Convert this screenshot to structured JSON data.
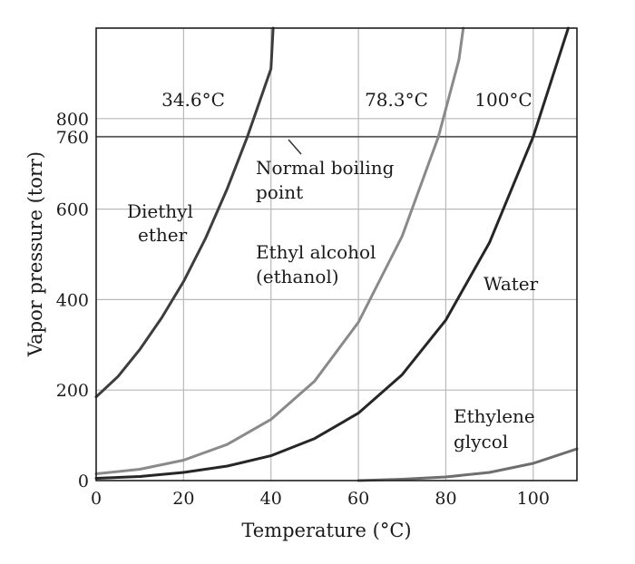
{
  "chart_data": {
    "type": "line",
    "title": "",
    "xlabel": "Temperature (°C)",
    "ylabel": "Vapor pressure (torr)",
    "xlim": [
      0,
      110
    ],
    "ylim": [
      0,
      1000
    ],
    "x_ticks": [
      0,
      20,
      40,
      60,
      80,
      100
    ],
    "y_ticks": [
      0,
      200,
      400,
      600,
      760,
      800
    ],
    "grid": true,
    "series": [
      {
        "name": "Diethyl ether",
        "label_lines": [
          "Diethyl",
          "ether"
        ],
        "color": "#3d3d3d",
        "points": [
          [
            0,
            185
          ],
          [
            5,
            230
          ],
          [
            10,
            290
          ],
          [
            15,
            360
          ],
          [
            20,
            440
          ],
          [
            25,
            535
          ],
          [
            30,
            645
          ],
          [
            34.6,
            760
          ],
          [
            40,
            910
          ],
          [
            40.5,
            1000
          ]
        ]
      },
      {
        "name": "Ethyl alcohol (ethanol)",
        "label_lines": [
          "Ethyl alcohol",
          "(ethanol)"
        ],
        "color": "#8a8a8a",
        "points": [
          [
            0,
            15
          ],
          [
            10,
            25
          ],
          [
            20,
            45
          ],
          [
            30,
            80
          ],
          [
            40,
            135
          ],
          [
            50,
            220
          ],
          [
            60,
            350
          ],
          [
            70,
            540
          ],
          [
            78.3,
            760
          ],
          [
            83,
            930
          ],
          [
            84,
            1000
          ]
        ]
      },
      {
        "name": "Water",
        "label_lines": [
          "Water"
        ],
        "color": "#262626",
        "points": [
          [
            0,
            5
          ],
          [
            10,
            9
          ],
          [
            20,
            18
          ],
          [
            30,
            32
          ],
          [
            40,
            55
          ],
          [
            50,
            93
          ],
          [
            60,
            149
          ],
          [
            70,
            234
          ],
          [
            80,
            355
          ],
          [
            90,
            526
          ],
          [
            100,
            760
          ],
          [
            104,
            880
          ],
          [
            108,
            1000
          ]
        ]
      },
      {
        "name": "Ethylene glycol",
        "label_lines": [
          "Ethylene",
          "glycol"
        ],
        "color": "#6e6e6e",
        "points": [
          [
            60,
            0
          ],
          [
            70,
            3
          ],
          [
            80,
            8
          ],
          [
            90,
            18
          ],
          [
            100,
            38
          ],
          [
            110,
            70
          ]
        ]
      }
    ],
    "reference_line": {
      "value": 760,
      "label_lines": [
        "Normal boiling",
        "point"
      ]
    },
    "boiling_points": [
      {
        "label": "34.6°C",
        "x": 34.6
      },
      {
        "label": "78.3°C",
        "x": 78.3
      },
      {
        "label": "100°C",
        "x": 100
      }
    ]
  }
}
